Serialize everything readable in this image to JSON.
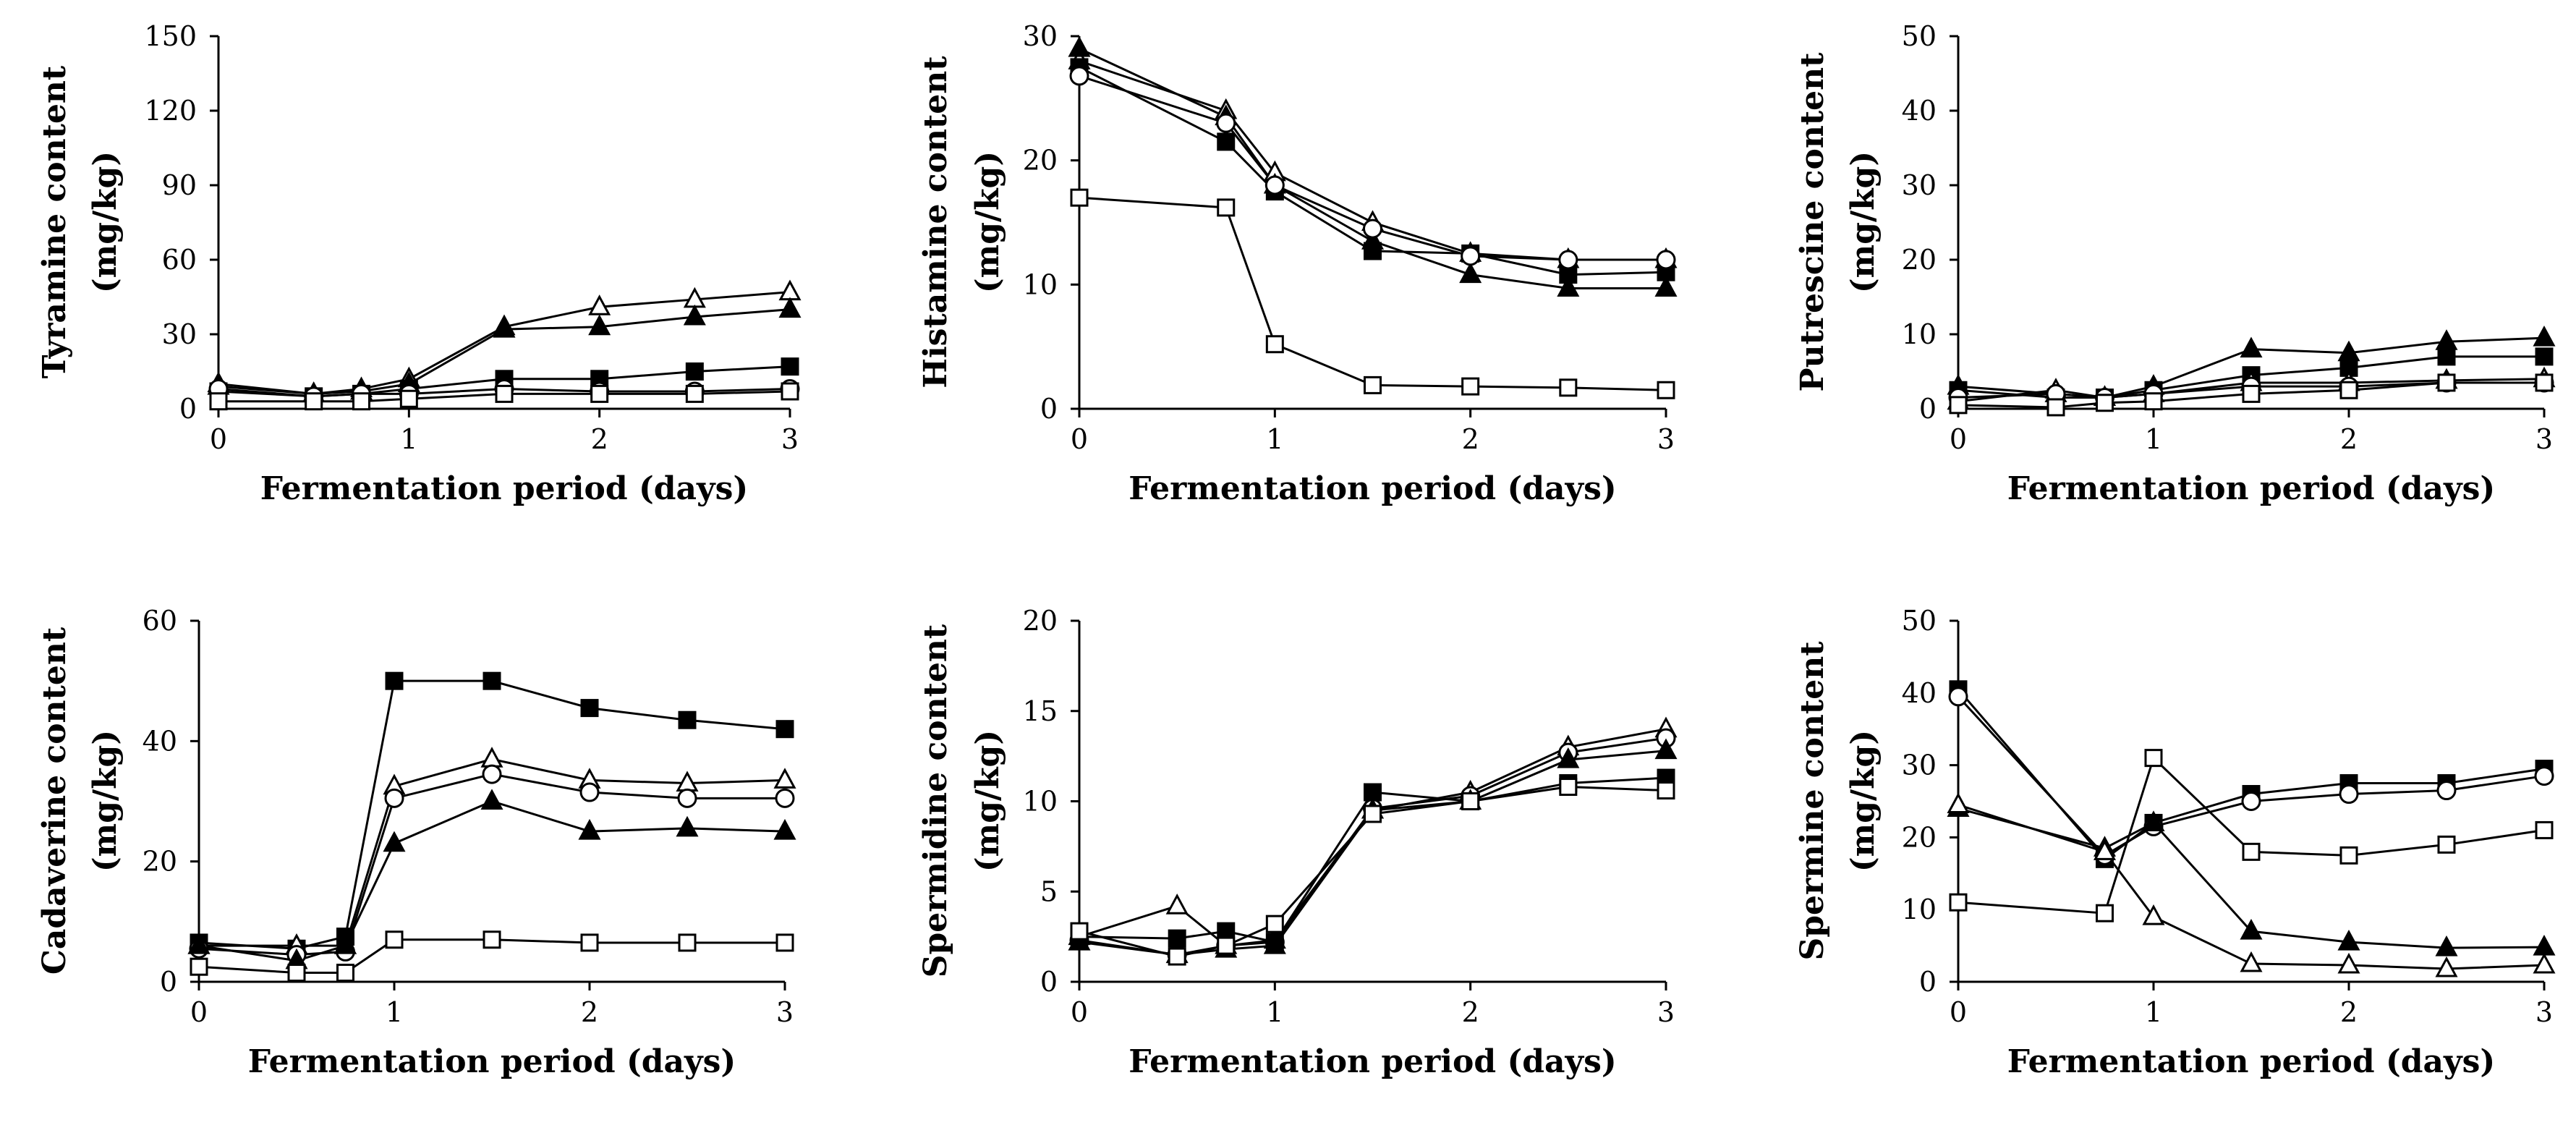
{
  "chart_data": [
    {
      "type": "line",
      "panel": "tyramine",
      "title": "",
      "xlabel": "Fermentation period (days)",
      "ylabel": [
        "Tyramine content",
        "(mg/kg)"
      ],
      "xlim": [
        0,
        3
      ],
      "ylim": [
        0,
        150
      ],
      "xticks": [
        "0",
        "1",
        "2",
        "3"
      ],
      "yticks": [
        "0",
        "30",
        "60",
        "90",
        "120",
        "150"
      ],
      "grid": false,
      "series": [
        {
          "name": "open-triangle",
          "marker": "triangle-open",
          "x": [
            0,
            0.5,
            0.75,
            1,
            1.5,
            2,
            2.5,
            3
          ],
          "values": [
            10,
            6,
            8,
            12,
            33,
            41,
            44,
            47
          ]
        },
        {
          "name": "filled-triangle",
          "marker": "triangle-filled",
          "x": [
            0,
            0.5,
            0.75,
            1,
            1.5,
            2,
            2.5,
            3
          ],
          "values": [
            9,
            6,
            7,
            10,
            32,
            33,
            37,
            40
          ]
        },
        {
          "name": "filled-square",
          "marker": "square-filled",
          "x": [
            0,
            0.5,
            0.75,
            1,
            1.5,
            2,
            2.5,
            3
          ],
          "values": [
            7,
            5,
            6,
            8,
            12,
            12,
            15,
            17
          ]
        },
        {
          "name": "open-circle",
          "marker": "circle-open",
          "x": [
            0,
            0.5,
            0.75,
            1,
            1.5,
            2,
            2.5,
            3
          ],
          "values": [
            8,
            5,
            6,
            6,
            8,
            7,
            7,
            8
          ]
        },
        {
          "name": "open-square",
          "marker": "square-open",
          "x": [
            0,
            0.5,
            0.75,
            1,
            1.5,
            2,
            2.5,
            3
          ],
          "values": [
            3,
            3,
            3,
            4,
            6,
            6,
            6,
            7
          ]
        }
      ]
    },
    {
      "type": "line",
      "panel": "histamine",
      "title": "",
      "xlabel": "Fermentation period (days)",
      "ylabel": [
        "Histamine content",
        "(mg/kg)"
      ],
      "xlim": [
        0,
        3
      ],
      "ylim": [
        0,
        30
      ],
      "xticks": [
        "0",
        "1",
        "2",
        "3"
      ],
      "yticks": [
        "0",
        "10",
        "20",
        "30"
      ],
      "grid": false,
      "series": [
        {
          "name": "open-triangle",
          "marker": "triangle-open",
          "x": [
            0,
            0.75,
            1,
            1.5,
            2,
            2.5,
            3
          ],
          "values": [
            28,
            24,
            19,
            15,
            12.5,
            12,
            12
          ]
        },
        {
          "name": "filled-triangle",
          "marker": "triangle-filled",
          "x": [
            0,
            0.75,
            1,
            1.5,
            2,
            2.5,
            3
          ],
          "values": [
            29,
            23.5,
            18,
            13.5,
            10.8,
            9.7,
            9.7
          ]
        },
        {
          "name": "filled-square",
          "marker": "square-filled",
          "x": [
            0,
            0.75,
            1,
            1.5,
            2,
            2.5,
            3
          ],
          "values": [
            27.5,
            21.5,
            17.5,
            12.7,
            12.5,
            10.8,
            11
          ]
        },
        {
          "name": "open-circle",
          "marker": "circle-open",
          "x": [
            0,
            0.75,
            1,
            1.5,
            2,
            2.5,
            3
          ],
          "values": [
            26.8,
            23,
            18,
            14.5,
            12.3,
            12,
            12
          ]
        },
        {
          "name": "open-square",
          "marker": "square-open",
          "x": [
            0,
            0.75,
            1,
            1.5,
            2,
            2.5,
            3
          ],
          "values": [
            17,
            16.2,
            5.2,
            1.9,
            1.8,
            1.7,
            1.5
          ]
        }
      ]
    },
    {
      "type": "line",
      "panel": "putrescine",
      "title": "",
      "xlabel": "Fermentation period (days)",
      "ylabel": [
        "Putrescine content",
        "(mg/kg)"
      ],
      "xlim": [
        0,
        3
      ],
      "ylim": [
        0,
        50
      ],
      "xticks": [
        "0",
        "1",
        "2",
        "3"
      ],
      "yticks": [
        "0",
        "10",
        "20",
        "30",
        "40",
        "50"
      ],
      "grid": false,
      "series": [
        {
          "name": "filled-triangle",
          "marker": "triangle-filled",
          "x": [
            0,
            0.5,
            0.75,
            1,
            1.5,
            2,
            2.5,
            3
          ],
          "values": [
            3,
            2,
            1.5,
            3,
            8,
            7.5,
            9,
            9.5
          ]
        },
        {
          "name": "filled-square",
          "marker": "square-filled",
          "x": [
            0,
            0.5,
            0.75,
            1,
            1.5,
            2,
            2.5,
            3
          ],
          "values": [
            2.5,
            1.5,
            1.5,
            2.5,
            4.5,
            5.5,
            7,
            7
          ]
        },
        {
          "name": "open-triangle",
          "marker": "triangle-open",
          "x": [
            0,
            0.5,
            0.75,
            1,
            1.5,
            2,
            2.5,
            3
          ],
          "values": [
            1,
            2.5,
            1.5,
            2,
            3.5,
            3.5,
            3.8,
            4
          ]
        },
        {
          "name": "open-circle",
          "marker": "circle-open",
          "x": [
            0,
            0.5,
            0.75,
            1,
            1.5,
            2,
            2.5,
            3
          ],
          "values": [
            1.5,
            2,
            1.5,
            2,
            3,
            3,
            3.5,
            3.5
          ]
        },
        {
          "name": "open-square",
          "marker": "square-open",
          "x": [
            0,
            0.5,
            0.75,
            1,
            1.5,
            2,
            2.5,
            3
          ],
          "values": [
            0.5,
            0.2,
            0.8,
            1,
            2,
            2.5,
            3.5,
            3.5
          ]
        }
      ]
    },
    {
      "type": "line",
      "panel": "cadaverine",
      "title": "",
      "xlabel": "Fermentation period (days)",
      "ylabel": [
        "Cadaverine content",
        "(mg/kg)"
      ],
      "xlim": [
        0,
        3
      ],
      "ylim": [
        0,
        60
      ],
      "xticks": [
        "0",
        "1",
        "2",
        "3"
      ],
      "yticks": [
        "0",
        "20",
        "40",
        "60"
      ],
      "grid": false,
      "series": [
        {
          "name": "filled-square",
          "marker": "square-filled",
          "x": [
            0,
            0.5,
            0.75,
            1,
            1.5,
            2,
            2.5,
            3
          ],
          "values": [
            6.5,
            5.5,
            7.5,
            50,
            50,
            45.5,
            43.5,
            42
          ]
        },
        {
          "name": "open-triangle",
          "marker": "triangle-open",
          "x": [
            0,
            0.5,
            0.75,
            1,
            1.5,
            2,
            2.5,
            3
          ],
          "values": [
            6,
            6,
            6,
            32.5,
            37,
            33.5,
            33,
            33.5
          ]
        },
        {
          "name": "open-circle",
          "marker": "circle-open",
          "x": [
            0,
            0.5,
            0.75,
            1,
            1.5,
            2,
            2.5,
            3
          ],
          "values": [
            5.5,
            4.5,
            5,
            30.5,
            34.5,
            31.5,
            30.5,
            30.5
          ]
        },
        {
          "name": "filled-triangle",
          "marker": "triangle-filled",
          "x": [
            0,
            0.5,
            0.75,
            1,
            1.5,
            2,
            2.5,
            3
          ],
          "values": [
            6,
            3.5,
            6,
            23,
            30,
            25,
            25.5,
            25
          ]
        },
        {
          "name": "open-square",
          "marker": "square-open",
          "x": [
            0,
            0.5,
            0.75,
            1,
            1.5,
            2,
            2.5,
            3
          ],
          "values": [
            2.5,
            1.5,
            1.5,
            7,
            7,
            6.5,
            6.5,
            6.5
          ]
        }
      ]
    },
    {
      "type": "line",
      "panel": "spermidine",
      "title": "",
      "xlabel": "Fermentation period (days)",
      "ylabel": [
        "Spermidine content",
        "(mg/kg)"
      ],
      "xlim": [
        0,
        3
      ],
      "ylim": [
        0,
        20
      ],
      "xticks": [
        "0",
        "1",
        "2",
        "3"
      ],
      "yticks": [
        "0",
        "5",
        "10",
        "15",
        "20"
      ],
      "grid": false,
      "series": [
        {
          "name": "open-triangle",
          "marker": "triangle-open",
          "x": [
            0,
            0.5,
            0.75,
            1,
            1.5,
            2,
            2.5,
            3
          ],
          "values": [
            2.5,
            4.2,
            2,
            2.3,
            9.5,
            10.5,
            13,
            14
          ]
        },
        {
          "name": "open-circle",
          "marker": "circle-open",
          "x": [
            0,
            0.5,
            0.75,
            1,
            1.5,
            2,
            2.5,
            3
          ],
          "values": [
            2.3,
            1.5,
            2,
            2.2,
            9.6,
            10.3,
            12.7,
            13.5
          ]
        },
        {
          "name": "filled-triangle",
          "marker": "triangle-filled",
          "x": [
            0,
            0.5,
            0.75,
            1,
            1.5,
            2,
            2.5,
            3
          ],
          "values": [
            2.2,
            1.5,
            1.8,
            2,
            9.5,
            10,
            12.3,
            12.8
          ]
        },
        {
          "name": "filled-square",
          "marker": "square-filled",
          "x": [
            0,
            0.5,
            0.75,
            1,
            1.5,
            2,
            2.5,
            3
          ],
          "values": [
            2.5,
            2.4,
            2.8,
            2.2,
            10.5,
            10,
            11,
            11.3
          ]
        },
        {
          "name": "open-square",
          "marker": "square-open",
          "x": [
            0,
            0.5,
            0.75,
            1,
            1.5,
            2,
            2.5,
            3
          ],
          "values": [
            2.8,
            1.4,
            2,
            3.2,
            9.3,
            10,
            10.8,
            10.6
          ]
        }
      ]
    },
    {
      "type": "line",
      "panel": "spermine",
      "title": "",
      "xlabel": "Fermentation period (days)",
      "ylabel": [
        "Spermine content",
        "(mg/kg)"
      ],
      "xlim": [
        0,
        3
      ],
      "ylim": [
        0,
        50
      ],
      "xticks": [
        "0",
        "1",
        "2",
        "3"
      ],
      "yticks": [
        "0",
        "10",
        "20",
        "30",
        "40",
        "50"
      ],
      "grid": false,
      "series": [
        {
          "name": "filled-square",
          "marker": "square-filled",
          "x": [
            0,
            0.75,
            1,
            1.5,
            2,
            2.5,
            3
          ],
          "values": [
            40.5,
            17,
            22,
            26,
            27.5,
            27.5,
            29.5
          ]
        },
        {
          "name": "open-circle",
          "marker": "circle-open",
          "x": [
            0,
            0.75,
            1,
            1.5,
            2,
            2.5,
            3
          ],
          "values": [
            39.5,
            17.5,
            21.5,
            25,
            26,
            26.5,
            28.5
          ]
        },
        {
          "name": "open-square",
          "marker": "square-open",
          "x": [
            0,
            0.75,
            1,
            1.5,
            2,
            2.5,
            3
          ],
          "values": [
            11,
            9.5,
            31,
            18,
            17.5,
            19,
            21
          ]
        },
        {
          "name": "filled-triangle",
          "marker": "triangle-filled",
          "x": [
            0,
            0.75,
            1,
            1.5,
            2,
            2.5,
            3
          ],
          "values": [
            24,
            18.5,
            22,
            7,
            5.5,
            4.7,
            4.8
          ]
        },
        {
          "name": "open-triangle",
          "marker": "triangle-open",
          "x": [
            0,
            0.75,
            1,
            1.5,
            2,
            2.5,
            3
          ],
          "values": [
            24.5,
            18,
            9,
            2.5,
            2.3,
            1.8,
            2.3
          ]
        }
      ]
    }
  ]
}
